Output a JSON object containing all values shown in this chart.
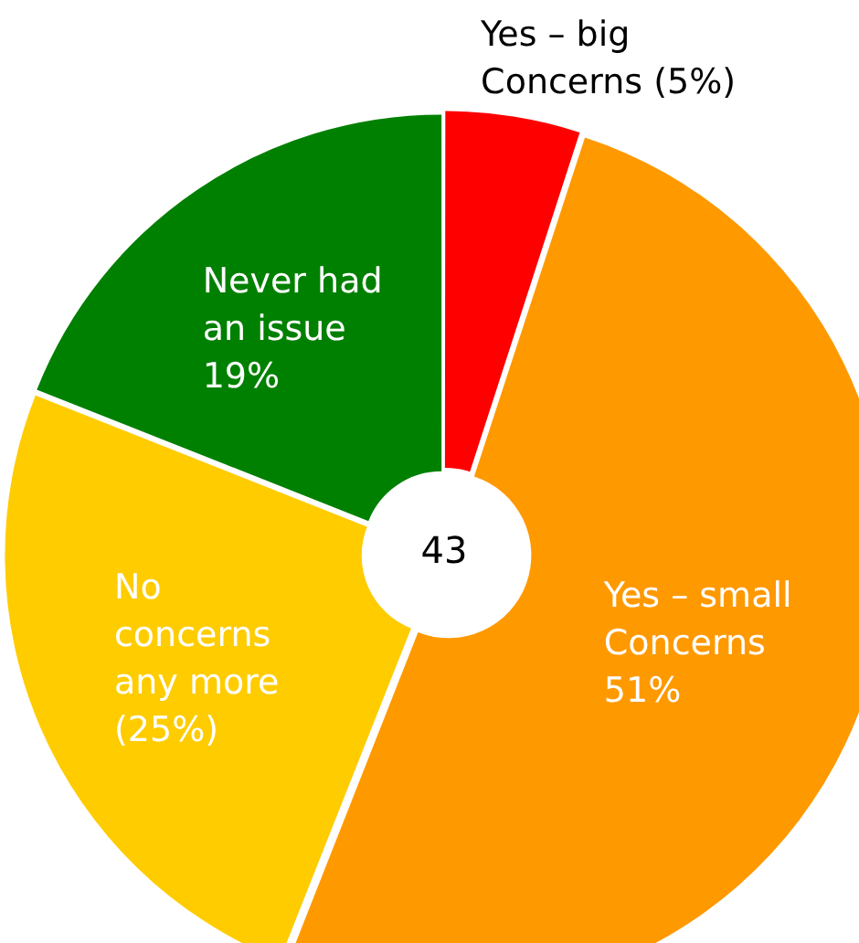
{
  "chart_data": {
    "type": "donut",
    "categories": [
      "Yes – big Concerns",
      "Yes – small Concerns",
      "No concerns any more",
      "Never had an issue"
    ],
    "values": [
      5,
      51,
      25,
      19
    ],
    "value_labels": [
      "(5%)",
      "51%",
      "(25%)",
      "19%"
    ],
    "colors": [
      "#ff0000",
      "#ff9900",
      "#ffcc00",
      "#008000"
    ],
    "annotations": [
      "43"
    ],
    "legend": false
  }
}
